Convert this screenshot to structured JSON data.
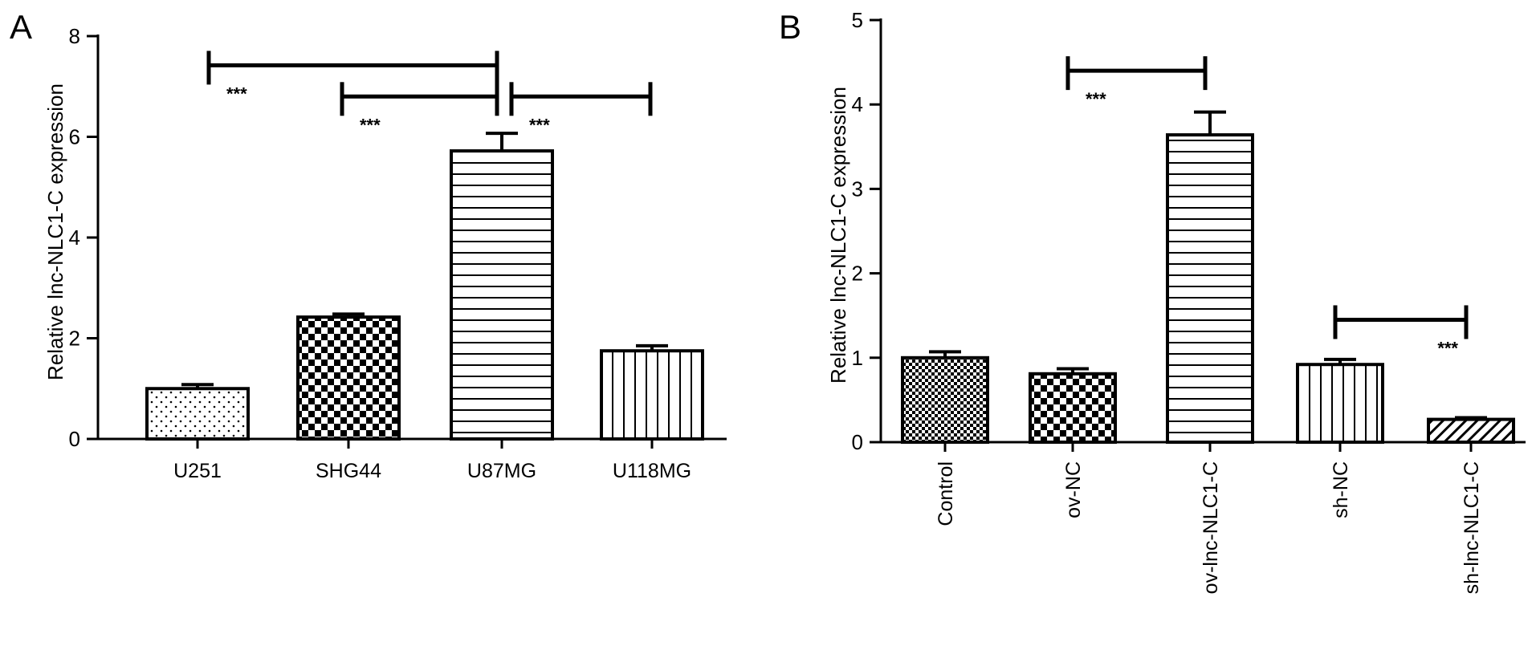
{
  "chart_data": [
    {
      "panel": "A",
      "type": "bar",
      "ylabel": "Relative lnc-NLC1-C expression",
      "ylim": [
        0,
        8
      ],
      "yticks": [
        0,
        2,
        4,
        6,
        8
      ],
      "categories": [
        "U251",
        "SHG44",
        "U87MG",
        "U118MG"
      ],
      "values": [
        1.0,
        2.42,
        5.72,
        1.75
      ],
      "errors": [
        0.08,
        0.06,
        0.35,
        0.1
      ],
      "patterns": [
        "dots",
        "checker",
        "hlines",
        "vlines"
      ],
      "brackets": [
        {
          "from": "U251",
          "to": "U87MG",
          "y": 7.42,
          "label": "***"
        },
        {
          "from": "SHG44",
          "to": "U87MG",
          "y": 6.8,
          "label": "***"
        },
        {
          "from": "U87MG",
          "to": "U118MG",
          "y": 6.8,
          "label": "***"
        }
      ]
    },
    {
      "panel": "B",
      "type": "bar",
      "ylabel": "Relative lnc-NLC1-C expression",
      "ylim": [
        0,
        5
      ],
      "yticks": [
        0,
        1,
        2,
        3,
        4,
        5
      ],
      "categories": [
        "Control",
        "ov-NC",
        "ov-lnc-NLC1-C",
        "sh-NC",
        "sh-lnc-NLC1-C"
      ],
      "values": [
        1.0,
        0.81,
        3.64,
        0.92,
        0.27
      ],
      "errors": [
        0.07,
        0.06,
        0.27,
        0.06,
        0.02
      ],
      "patterns": [
        "finecheck",
        "checker",
        "hlines",
        "vlines",
        "diag"
      ],
      "brackets": [
        {
          "from": "ov-NC",
          "to": "ov-lnc-NLC1-C",
          "y": 4.4,
          "label": "***"
        },
        {
          "from": "sh-NC",
          "to": "sh-lnc-NLC1-C",
          "y": 1.45,
          "label": "***"
        }
      ]
    }
  ]
}
